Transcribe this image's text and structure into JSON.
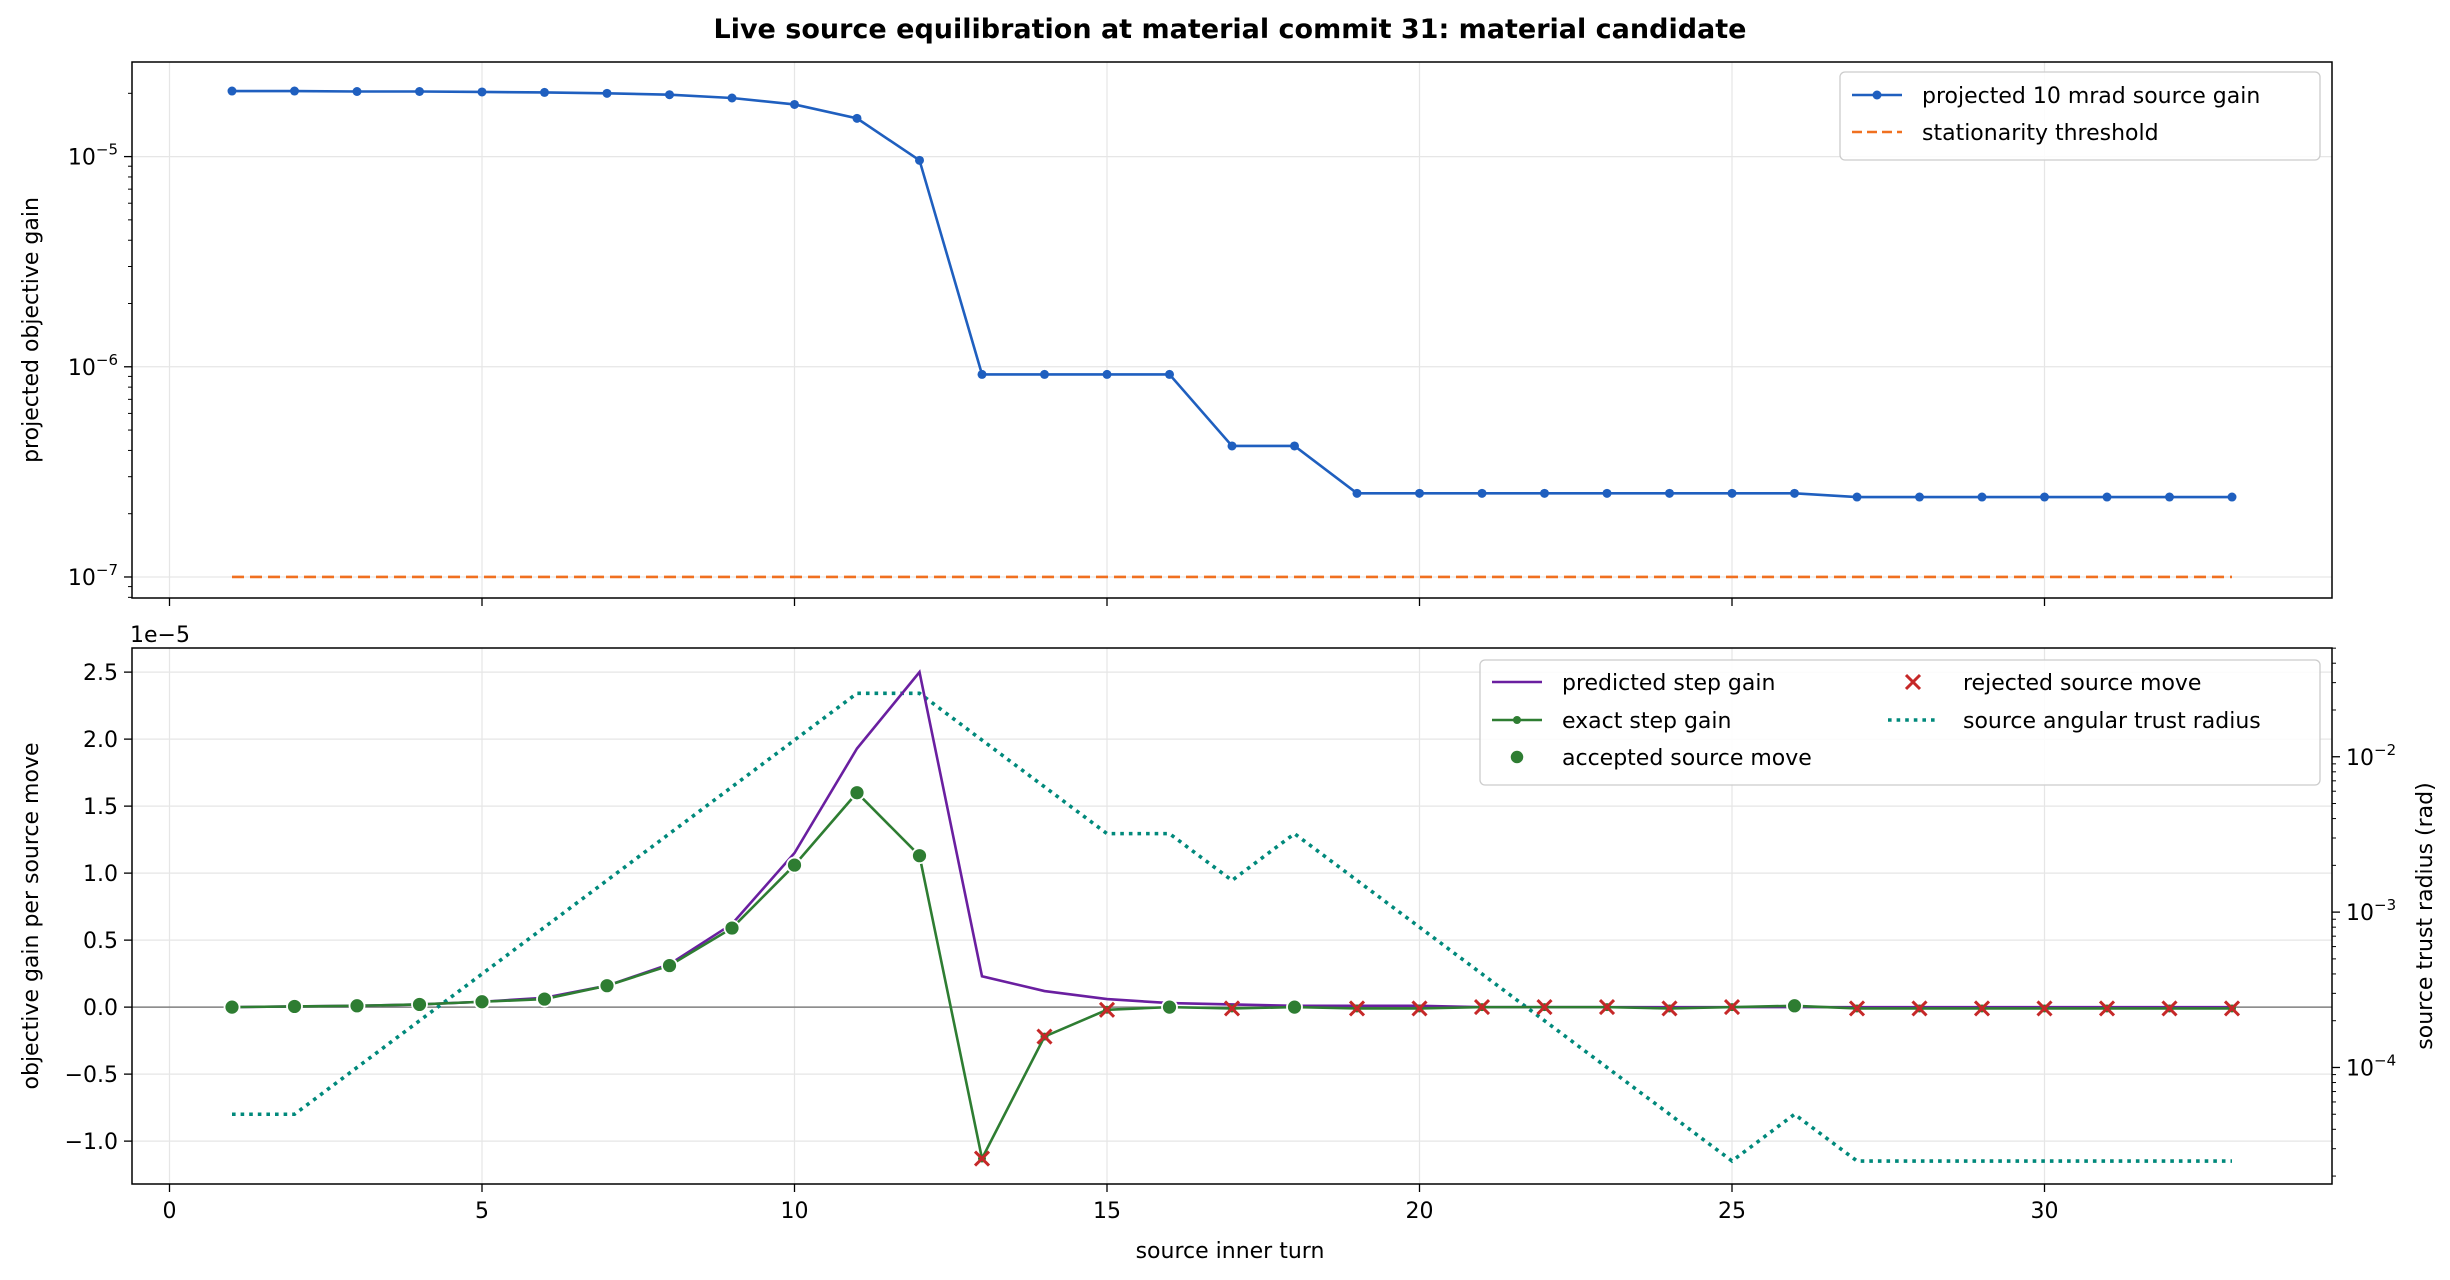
{
  "figure_title": "Live source equilibration at material commit 31: material candidate",
  "chart_data": [
    {
      "type": "line",
      "ylabel": "projected objective gain",
      "xlim": [
        -0.6,
        34.6
      ],
      "ylim_log10": [
        -7.1,
        -4.55
      ],
      "yscale": "log",
      "grid": true,
      "legend_position": "top-right",
      "x_ticks": [
        0,
        5,
        10,
        15,
        20,
        25,
        30
      ],
      "y_ticks": [
        {
          "exp": -5,
          "base": "10",
          "sup": "−5"
        },
        {
          "exp": -6,
          "base": "10",
          "sup": "−6"
        },
        {
          "exp": -7,
          "base": "10",
          "sup": "−7"
        }
      ],
      "series": [
        {
          "name": "projected 10 mrad source gain",
          "color": "#1f5fbf",
          "marker": "dot",
          "x": [
            1,
            2,
            3,
            4,
            5,
            6,
            7,
            8,
            9,
            10,
            11,
            12,
            13,
            14,
            15,
            16,
            17,
            18,
            19,
            20,
            21,
            22,
            23,
            24,
            25,
            26,
            27,
            28,
            29,
            30,
            31,
            32,
            33
          ],
          "y": [
            2.05e-05,
            2.05e-05,
            2.04e-05,
            2.04e-05,
            2.03e-05,
            2.02e-05,
            2e-05,
            1.97e-05,
            1.9e-05,
            1.77e-05,
            1.52e-05,
            9.6e-06,
            9.2e-07,
            9.2e-07,
            9.2e-07,
            9.2e-07,
            4.2e-07,
            4.2e-07,
            2.5e-07,
            2.5e-07,
            2.5e-07,
            2.5e-07,
            2.5e-07,
            2.5e-07,
            2.5e-07,
            2.5e-07,
            2.4e-07,
            2.4e-07,
            2.4e-07,
            2.4e-07,
            2.4e-07,
            2.4e-07,
            2.4e-07
          ]
        },
        {
          "name": "stationarity threshold",
          "color": "#f07020",
          "style": "dashed",
          "x": [
            1,
            33
          ],
          "y": [
            1e-07,
            1e-07
          ]
        }
      ]
    },
    {
      "type": "line",
      "xlabel": "source inner turn",
      "ylabel": "objective gain per source move",
      "y_offset_label": "1e−5",
      "ylabel_right": "source trust radius (rad)",
      "xlim": [
        -0.6,
        34.6
      ],
      "ylim": [
        -1.32,
        2.68
      ],
      "ylim_right_log10": [
        -4.75,
        -1.3
      ],
      "yscale_right": "log",
      "grid": true,
      "legend_position": "top-right",
      "x_ticks": [
        0,
        5,
        10,
        15,
        20,
        25,
        30
      ],
      "y_ticks": [
        "−1.0",
        "−0.5",
        "0.0",
        "0.5",
        "1.0",
        "1.5",
        "2.0",
        "2.5"
      ],
      "y_tick_values": [
        -1.0,
        -0.5,
        0.0,
        0.5,
        1.0,
        1.5,
        2.0,
        2.5
      ],
      "y_right_ticks": [
        {
          "exp": -2,
          "base": "10",
          "sup": "−2"
        },
        {
          "exp": -3,
          "base": "10",
          "sup": "−3"
        },
        {
          "exp": -4,
          "base": "10",
          "sup": "−4"
        }
      ],
      "x": [
        1,
        2,
        3,
        4,
        5,
        6,
        7,
        8,
        9,
        10,
        11,
        12,
        13,
        14,
        15,
        16,
        17,
        18,
        19,
        20,
        21,
        22,
        23,
        24,
        25,
        26,
        27,
        28,
        29,
        30,
        31,
        32,
        33
      ],
      "series": [
        {
          "name": "predicted step gain",
          "color": "#6a1fa0",
          "y": [
            0.0,
            0.005,
            0.01,
            0.02,
            0.04,
            0.07,
            0.16,
            0.32,
            0.62,
            1.15,
            1.93,
            2.5,
            0.23,
            0.12,
            0.06,
            0.03,
            0.02,
            0.01,
            0.01,
            0.01,
            0.0,
            0.0,
            0.0,
            0.0,
            0.0,
            0.0,
            0.0,
            0.0,
            0.0,
            0.0,
            0.0,
            0.0,
            0.0
          ]
        },
        {
          "name": "exact step gain",
          "color": "#2e7d32",
          "marker": "dot",
          "y": [
            0.0,
            0.005,
            0.01,
            0.02,
            0.04,
            0.06,
            0.16,
            0.31,
            0.59,
            1.06,
            1.6,
            1.13,
            -1.13,
            -0.22,
            -0.02,
            0.0,
            -0.01,
            0.0,
            -0.01,
            -0.01,
            0.0,
            0.0,
            0.0,
            -0.01,
            0.0,
            0.01,
            -0.01,
            -0.01,
            -0.01,
            -0.01,
            -0.01,
            -0.01,
            -0.01
          ]
        },
        {
          "name": "accepted source move",
          "color": "#2e7d32",
          "marker": "circle",
          "x": [
            1,
            2,
            3,
            4,
            5,
            6,
            7,
            8,
            9,
            10,
            11,
            12,
            16,
            18,
            26
          ],
          "y": [
            0.0,
            0.005,
            0.01,
            0.02,
            0.04,
            0.06,
            0.16,
            0.31,
            0.59,
            1.06,
            1.6,
            1.13,
            0.0,
            0.0,
            0.01
          ]
        },
        {
          "name": "rejected source move",
          "color": "#c62828",
          "marker": "x",
          "x": [
            13,
            14,
            15,
            17,
            19,
            20,
            21,
            22,
            23,
            24,
            25,
            27,
            28,
            29,
            30,
            31,
            32,
            33
          ],
          "y": [
            -1.13,
            -0.22,
            -0.02,
            -0.01,
            -0.01,
            -0.01,
            0.0,
            0.0,
            0.0,
            -0.01,
            0.0,
            -0.01,
            -0.01,
            -0.01,
            -0.01,
            -0.01,
            -0.01,
            -0.01
          ]
        },
        {
          "name": "source angular trust radius",
          "color": "#00897b",
          "style": "dotted",
          "axis": "right",
          "y": [
            5e-05,
            5e-05,
            0.0001,
            0.0002,
            0.0004,
            0.0008,
            0.0016,
            0.0032,
            0.0064,
            0.0128,
            0.0256,
            0.0256,
            0.0128,
            0.0064,
            0.0032,
            0.0032,
            0.0016,
            0.0032,
            0.0016,
            0.0008,
            0.0004,
            0.0002,
            0.0001,
            5e-05,
            2.5e-05,
            5e-05,
            2.5e-05,
            2.5e-05,
            2.5e-05,
            2.5e-05,
            2.5e-05,
            2.5e-05,
            2.5e-05
          ]
        }
      ]
    }
  ]
}
